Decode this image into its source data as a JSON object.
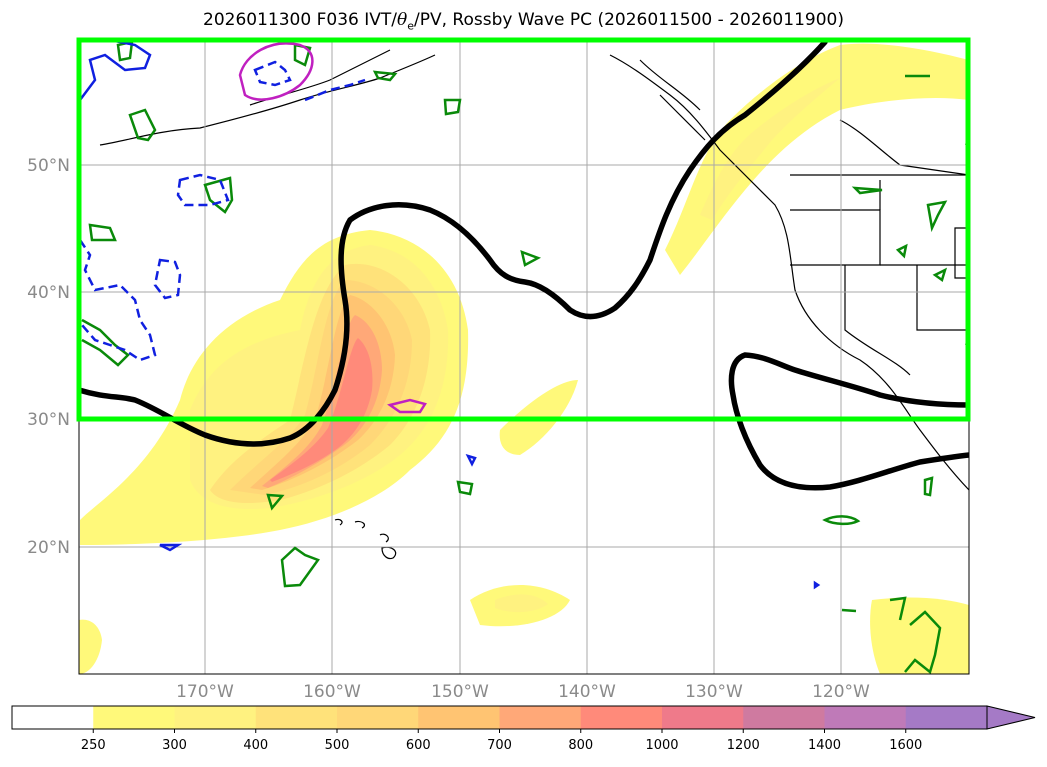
{
  "title": {
    "prefix": "2026011300 F036 IVT/",
    "theta": "θ",
    "theta_sub": "e",
    "suffix": "/PV, Rossby Wave PC (2026011500 - 2026011900)"
  },
  "lat_labels": [
    "50°N",
    "40°N",
    "30°N",
    "20°N"
  ],
  "lon_labels": [
    "170°W",
    "160°W",
    "150°W",
    "140°W",
    "130°W",
    "120°W"
  ],
  "colorbar": {
    "levels": [
      "250",
      "300",
      "400",
      "500",
      "600",
      "700",
      "800",
      "1000",
      "1200",
      "1400",
      "1600"
    ],
    "colors": [
      "#ffffff",
      "#fff97a",
      "#fff280",
      "#ffe27a",
      "#ffd778",
      "#ffc472",
      "#ffa878",
      "#ff8a7a",
      "#ef7a8a",
      "#cf7aa0",
      "#bf7ab8",
      "#a57ac6"
    ]
  },
  "overlay": {
    "highlight_box_color": "#00ff00",
    "contour_black": "#000000",
    "contour_green": "#0a8a0a",
    "contour_blue": "#1020e0",
    "contour_magenta": "#c020c0"
  }
}
